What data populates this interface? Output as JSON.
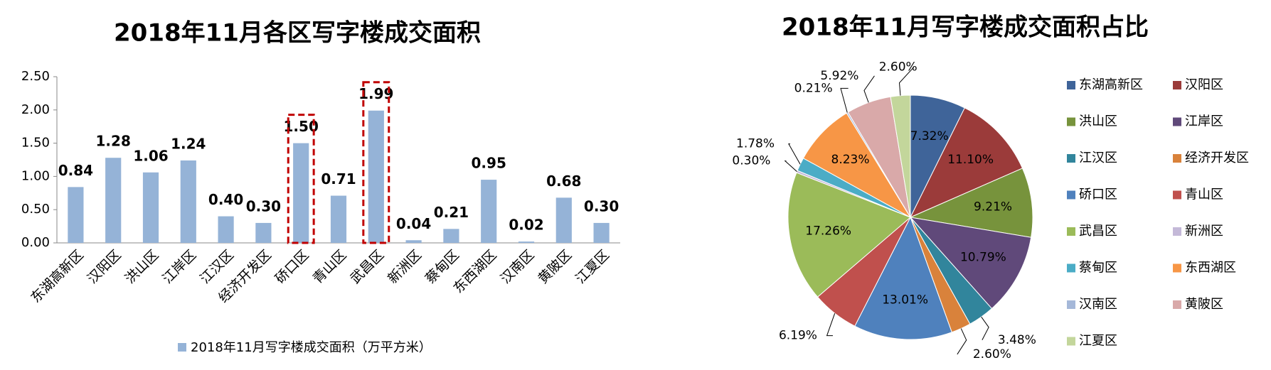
{
  "chart_data": [
    {
      "type": "bar",
      "title": "2018年11月各区写字楼成交面积",
      "categories": [
        "东湖高新区",
        "汉阳区",
        "洪山区",
        "江岸区",
        "江汉区",
        "经济开发区",
        "硚口区",
        "青山区",
        "武昌区",
        "新洲区",
        "蔡甸区",
        "东西湖区",
        "汉南区",
        "黄陂区",
        "江夏区"
      ],
      "series": [
        {
          "name": "2018年11月写字楼成交面积（万平方米）",
          "color": "#95b3d7",
          "values": [
            0.84,
            1.28,
            1.06,
            1.24,
            0.4,
            0.3,
            1.5,
            0.71,
            1.99,
            0.04,
            0.21,
            0.95,
            0.02,
            0.68,
            0.3
          ],
          "value_labels": [
            "0.84",
            "1.28",
            "1.06",
            "1.24",
            "0.40",
            "0.30",
            "1.50",
            "0.71",
            "1.99",
            "0.04",
            "0.21",
            "0.95",
            "0.02",
            "0.68",
            "0.30"
          ]
        }
      ],
      "ylim": [
        0,
        2.5
      ],
      "yticks": [
        {
          "value": 0,
          "label": "0.00"
        },
        {
          "value": 0.5,
          "label": "0.50"
        },
        {
          "value": 1,
          "label": "1.00"
        },
        {
          "value": 1.5,
          "label": "1.50"
        },
        {
          "value": 2,
          "label": "2.00"
        },
        {
          "value": 2.5,
          "label": "2.50"
        }
      ],
      "grid": false,
      "legend": "bottom",
      "highlight": [
        6,
        8
      ],
      "highlight_color": "#c00000"
    },
    {
      "type": "pie",
      "title": "2018年11月写字楼成交面积占比",
      "categories": [
        "东湖高新区",
        "汉阳区",
        "洪山区",
        "江岸区",
        "江汉区",
        "经济开发区",
        "硚口区",
        "青山区",
        "武昌区",
        "新洲区",
        "蔡甸区",
        "东西湖区",
        "汉南区",
        "黄陂区",
        "江夏区"
      ],
      "values": [
        7.32,
        11.1,
        9.21,
        10.79,
        3.48,
        2.6,
        13.01,
        6.19,
        17.26,
        0.3,
        1.78,
        8.23,
        0.21,
        5.92,
        2.6
      ],
      "value_labels": [
        "7.32%",
        "11.10%",
        "9.21%",
        "10.79%",
        "3.48%",
        "2.60%",
        "13.01%",
        "6.19%",
        "17.26%",
        "0.30%",
        "1.78%",
        "8.23%",
        "0.21%",
        "5.92%",
        "2.60%"
      ],
      "colors": [
        "#3f6499",
        "#9b3b3a",
        "#77933c",
        "#60497a",
        "#31859c",
        "#d9823b",
        "#4f81bd",
        "#c0504d",
        "#9bbb59",
        "#c4b9d8",
        "#4bacc6",
        "#f79646",
        "#a5b8d9",
        "#d9a9a9",
        "#c3d69b"
      ],
      "legend": "right"
    }
  ]
}
